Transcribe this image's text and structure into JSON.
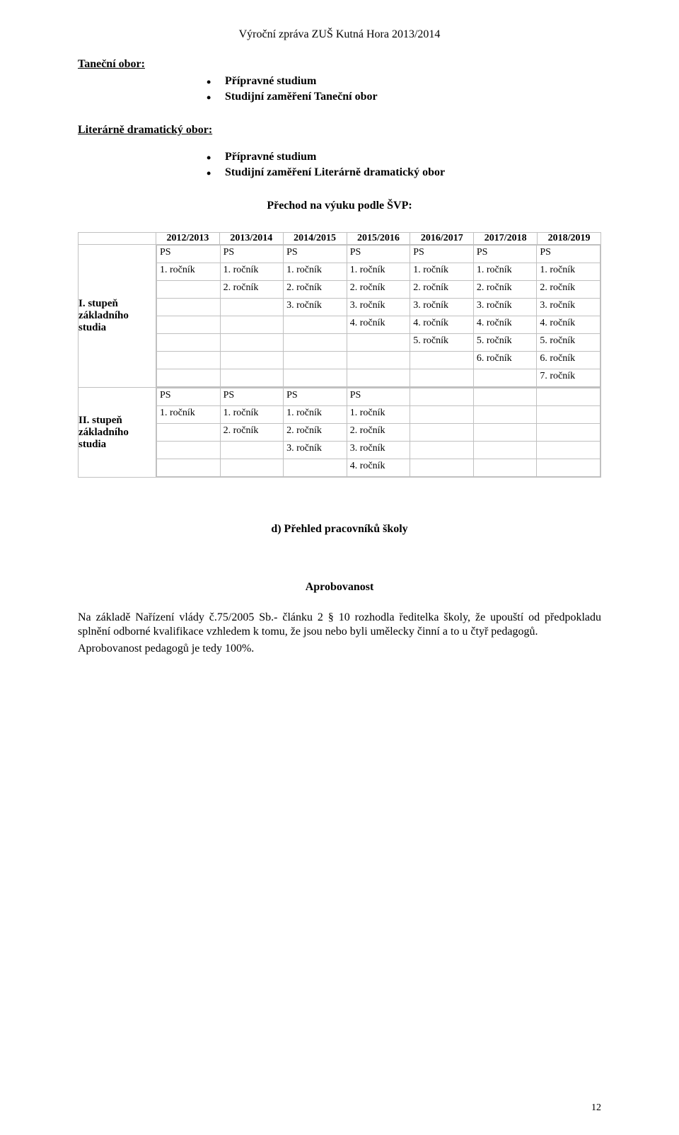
{
  "doc_header": "Výroční zpráva ZUŠ Kutná Hora 2013/2014",
  "tanecni": {
    "label": "Taneční obor:",
    "items": [
      "Přípravné studium",
      "Studijní zaměření Taneční obor"
    ]
  },
  "literarni": {
    "label": "Literárně dramatický  obor:",
    "items": [
      "Přípravné studium",
      "Studijní zaměření Literárně dramatický obor"
    ]
  },
  "prechod": "Přechod na výuku podle ŠVP:",
  "years": [
    "2012/2013",
    "2013/2014",
    "2014/2015",
    "2015/2016",
    "2016/2017",
    "2017/2018",
    "2018/2019"
  ],
  "row_labels": {
    "i": "I. stupeň základního studia",
    "ii": "II. stupeň základního studia"
  },
  "i_grid": [
    [
      "PS",
      "PS",
      "PS",
      "PS",
      "PS",
      "PS",
      "PS"
    ],
    [
      "1. ročník",
      "1. ročník",
      "1. ročník",
      "1. ročník",
      "1. ročník",
      "1. ročník",
      "1. ročník"
    ],
    [
      "",
      "2. ročník",
      "2. ročník",
      "2. ročník",
      "2. ročník",
      "2. ročník",
      "2. ročník"
    ],
    [
      "",
      "",
      "3. ročník",
      "3. ročník",
      "3. ročník",
      "3. ročník",
      "3. ročník"
    ],
    [
      "",
      "",
      "",
      "4. ročník",
      "4. ročník",
      "4. ročník",
      "4. ročník"
    ],
    [
      "",
      "",
      "",
      "",
      "5. ročník",
      "5. ročník",
      "5. ročník"
    ],
    [
      "",
      "",
      "",
      "",
      "",
      "6. ročník",
      "6. ročník"
    ],
    [
      "",
      "",
      "",
      "",
      "",
      "",
      "7. ročník"
    ]
  ],
  "ii_grid": [
    [
      "PS",
      "PS",
      "PS",
      "PS",
      "",
      "",
      ""
    ],
    [
      "1. ročník",
      "1. ročník",
      "1. ročník",
      "1. ročník",
      "",
      "",
      ""
    ],
    [
      "",
      "2. ročník",
      "2. ročník",
      "2. ročník",
      "",
      "",
      ""
    ],
    [
      "",
      "",
      "3. ročník",
      "3. ročník",
      "",
      "",
      ""
    ],
    [
      "",
      "",
      "",
      "4. ročník",
      "",
      "",
      ""
    ]
  ],
  "section_d": "d) Přehled pracovníků školy",
  "aprob_title": "Aprobovanost",
  "para1": "Na základě Nařízení vlády č.75/2005 Sb.- článku 2 § 10 rozhodla ředitelka školy, že upouští od předpokladu splnění odborné kvalifikace vzhledem k tomu, že jsou nebo byli umělecky činní a to  u čtyř  pedagogů.",
  "para2": "Aprobovanost pedagogů je tedy 100%.",
  "page_num": "12",
  "colors": {
    "border": "#c0c0c0",
    "text": "#000000",
    "bg": "#ffffff"
  }
}
